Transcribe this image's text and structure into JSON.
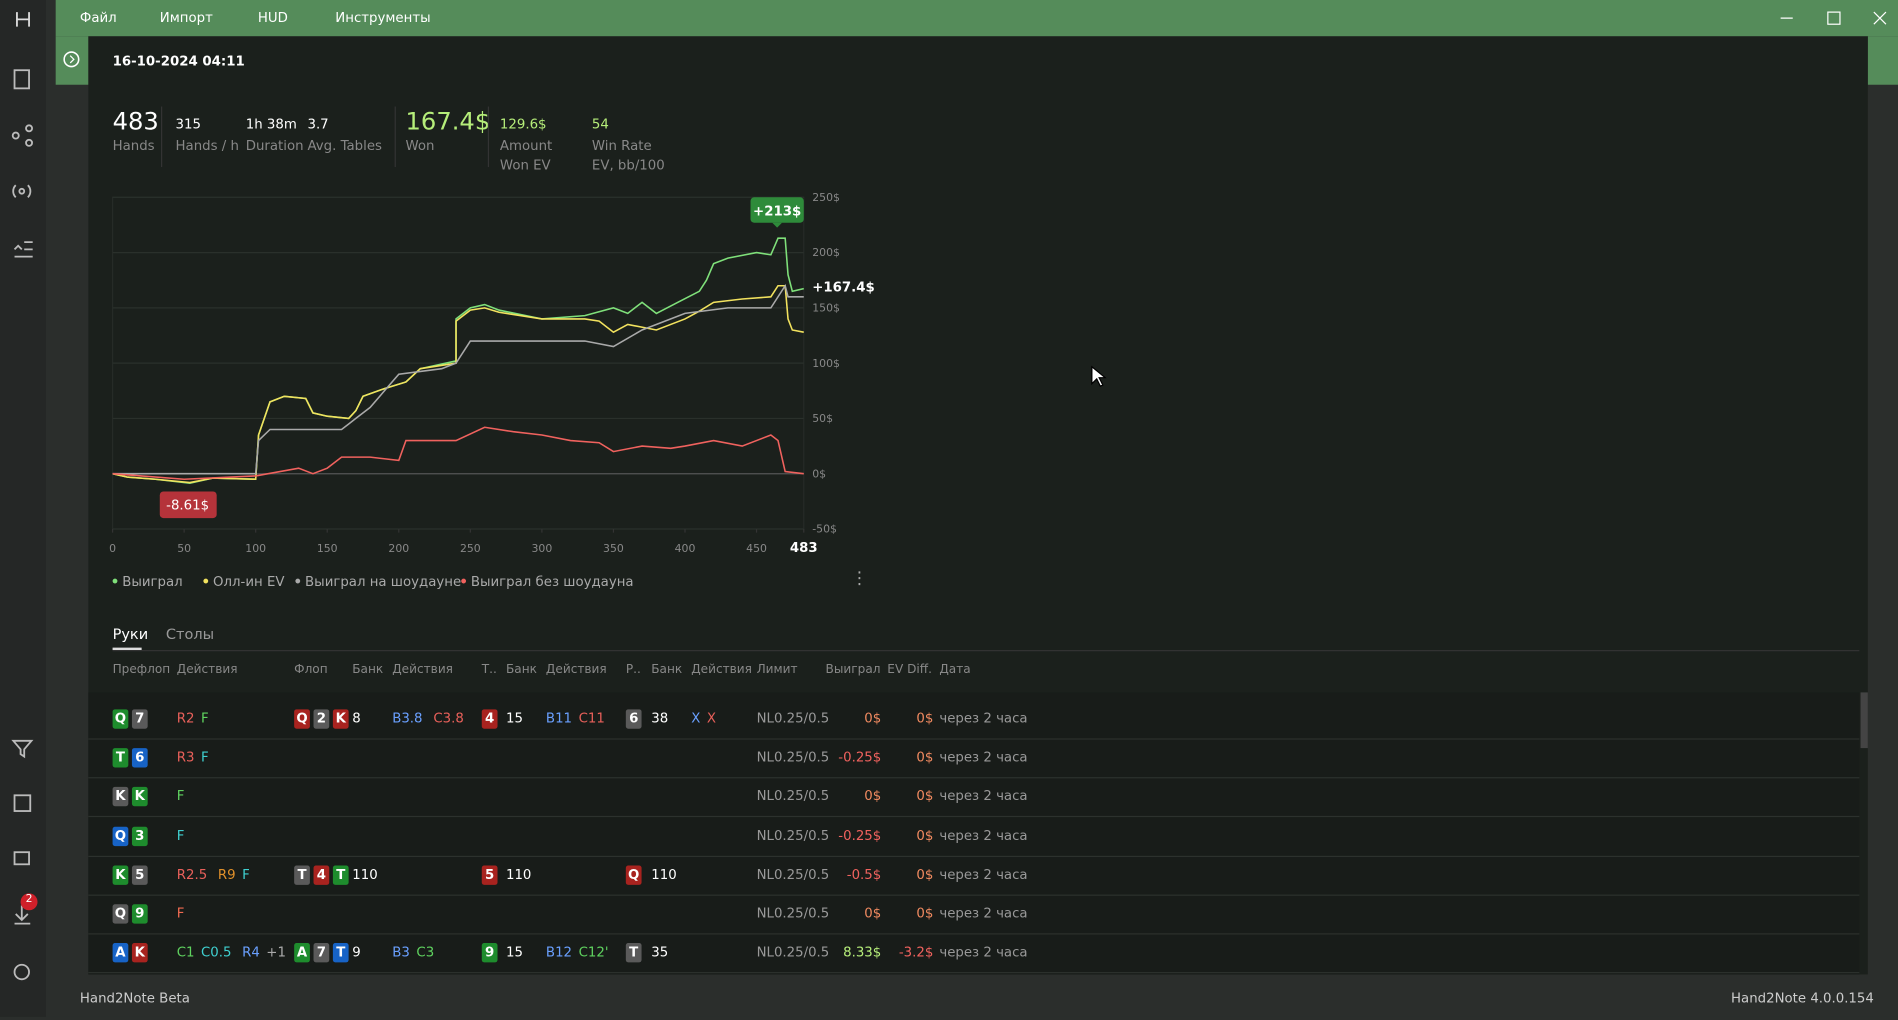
{
  "menu": [
    "Файл",
    "Импорт",
    "HUD",
    "Инструменты"
  ],
  "session_date": "16-10-2024 04:11",
  "stats": [
    {
      "value": "483",
      "label": "Hands"
    },
    {
      "value": "315",
      "label": "Hands / h"
    },
    {
      "value": "1h 38m",
      "label": "Duration"
    },
    {
      "value": "3.7",
      "label": "Avg. Tables"
    },
    {
      "value": "167.4$",
      "label": "Won"
    },
    {
      "value": "129.6$",
      "label": "Amount Won EV"
    },
    {
      "value": "54",
      "label": "Win Rate EV, bb/100"
    }
  ],
  "chart_data": {
    "type": "line",
    "xlim": [
      0,
      483
    ],
    "xticks": [
      0,
      50,
      100,
      150,
      200,
      250,
      300,
      350,
      400,
      450,
      483
    ],
    "ylim": [
      -50,
      250
    ],
    "yticks": [
      {
        "value": -50,
        "label": "-50$"
      },
      {
        "value": 0,
        "label": "0$"
      },
      {
        "value": 50,
        "label": "50$"
      },
      {
        "value": 100,
        "label": "100$"
      },
      {
        "value": 150,
        "label": "150$"
      },
      {
        "value": 200,
        "label": "200$"
      },
      {
        "value": 250,
        "label": "250$"
      }
    ],
    "grid": true,
    "annotations": [
      "+213$",
      "-8.61$",
      "+167.4$"
    ],
    "series": [
      {
        "name": "Выиграл",
        "color": "#7fe07a",
        "x": [
          0,
          10,
          30,
          54,
          70,
          100,
          102,
          110,
          120,
          135,
          140,
          150,
          165,
          170,
          175,
          190,
          205,
          215,
          240,
          240,
          250,
          260,
          270,
          300,
          330,
          350,
          360,
          370,
          380,
          395,
          410,
          415,
          420,
          430,
          450,
          460,
          465,
          470,
          472,
          475,
          483
        ],
        "values": [
          0,
          -3,
          -5,
          -8.61,
          -4,
          -5,
          35,
          65,
          70,
          68,
          55,
          52,
          50,
          57,
          70,
          77,
          83,
          95,
          102,
          140,
          150,
          153,
          148,
          140,
          143,
          150,
          145,
          155,
          145,
          155,
          165,
          175,
          190,
          195,
          200,
          198,
          213,
          213,
          180,
          165,
          167.4
        ]
      },
      {
        "name": "Олл-ин EV",
        "color": "#f2e25e",
        "x": [
          0,
          10,
          30,
          54,
          70,
          100,
          102,
          110,
          120,
          135,
          140,
          150,
          165,
          170,
          175,
          190,
          205,
          215,
          240,
          240,
          250,
          260,
          270,
          300,
          330,
          340,
          350,
          360,
          380,
          400,
          410,
          420,
          440,
          460,
          465,
          470,
          472,
          475,
          483
        ],
        "values": [
          0,
          -3,
          -5,
          -8,
          -4,
          -5,
          35,
          65,
          70,
          68,
          55,
          52,
          50,
          57,
          70,
          77,
          83,
          95,
          100,
          138,
          148,
          150,
          146,
          140,
          140,
          138,
          128,
          135,
          130,
          140,
          147,
          155,
          158,
          160,
          170,
          170,
          140,
          130,
          128
        ]
      },
      {
        "name": "Выиграл на шоудауне",
        "color": "#a9a9a9",
        "x": [
          0,
          100,
          102,
          110,
          160,
          165,
          170,
          180,
          190,
          200,
          230,
          240,
          250,
          330,
          350,
          370,
          400,
          430,
          460,
          470,
          472,
          483
        ],
        "values": [
          0,
          0,
          30,
          40,
          40,
          45,
          50,
          60,
          75,
          90,
          95,
          100,
          120,
          120,
          115,
          130,
          145,
          150,
          150,
          170,
          160,
          160
        ]
      },
      {
        "name": "Выиграл без шоудауна",
        "color": "#f0625e",
        "x": [
          0,
          50,
          100,
          130,
          140,
          150,
          160,
          180,
          200,
          205,
          240,
          260,
          280,
          300,
          320,
          340,
          350,
          370,
          390,
          400,
          420,
          440,
          460,
          465,
          470,
          483
        ],
        "values": [
          0,
          -5,
          -2,
          5,
          0,
          5,
          15,
          15,
          12,
          30,
          30,
          42,
          38,
          35,
          30,
          28,
          20,
          25,
          23,
          25,
          30,
          25,
          35,
          30,
          2,
          0
        ]
      }
    ]
  },
  "tabs": [
    "Руки",
    "Столы"
  ],
  "columns": [
    "Префлоп",
    "Действия",
    "Флоп",
    "Банк",
    "Действия",
    "Т..",
    "Банк",
    "Действия",
    "Р..",
    "Банк",
    "Действия",
    "Лимит",
    "Выиграл",
    "EV Diff.",
    "Дата"
  ],
  "rows": [
    {
      "preflop": [
        {
          "rank": "Q",
          "color": "#1e8c2d"
        },
        {
          "rank": "7",
          "color": "#5a5a5a"
        }
      ],
      "pre_actions": [
        {
          "text": "R2",
          "color": "#e8605a"
        },
        {
          "text": "F",
          "color": "#5fd35f"
        }
      ],
      "flop": [
        {
          "rank": "Q",
          "color": "#a8231f"
        },
        {
          "rank": "2",
          "color": "#5a5a5a"
        },
        {
          "rank": "K",
          "color": "#a8231f"
        }
      ],
      "flop_pot": 8,
      "flop_actions": [
        {
          "text": "B3.8",
          "color": "#6aa0ff"
        },
        {
          "text": "C3.8",
          "color": "#e8605a"
        }
      ],
      "turn": [
        {
          "rank": "4",
          "color": "#a8231f"
        }
      ],
      "turn_pot": 15,
      "turn_actions": [
        {
          "text": "B11",
          "color": "#6aa0ff"
        },
        {
          "text": "C11",
          "color": "#e8605a"
        }
      ],
      "river": [
        {
          "rank": "6",
          "color": "#5a5a5a"
        }
      ],
      "river_pot": 38,
      "river_actions": [
        {
          "text": "X",
          "color": "#6aa0ff"
        },
        {
          "text": "X",
          "color": "#e8605a"
        }
      ],
      "limit": "NL0.25/0.5",
      "won": {
        "text": "0$",
        "color": "#f08a60"
      },
      "ev_diff": {
        "text": "0$",
        "color": "#f08a60"
      },
      "date": "через 2 часа"
    },
    {
      "preflop": [
        {
          "rank": "T",
          "color": "#1e8c2d"
        },
        {
          "rank": "6",
          "color": "#1763c6"
        }
      ],
      "pre_actions": [
        {
          "text": "R3",
          "color": "#e8605a"
        },
        {
          "text": "F",
          "color": "#3fd0d0"
        }
      ],
      "limit": "NL0.25/0.5",
      "won": {
        "text": "-0.25$",
        "color": "#f0625e"
      },
      "ev_diff": {
        "text": "0$",
        "color": "#f08a60"
      },
      "date": "через 2 часа"
    },
    {
      "preflop": [
        {
          "rank": "K",
          "color": "#5a5a5a"
        },
        {
          "rank": "K",
          "color": "#1e8c2d"
        }
      ],
      "pre_actions": [
        {
          "text": "F",
          "color": "#5fd35f"
        }
      ],
      "limit": "NL0.25/0.5",
      "won": {
        "text": "0$",
        "color": "#f08a60"
      },
      "ev_diff": {
        "text": "0$",
        "color": "#f08a60"
      },
      "date": "через 2 часа"
    },
    {
      "preflop": [
        {
          "rank": "Q",
          "color": "#1763c6"
        },
        {
          "rank": "3",
          "color": "#1e8c2d"
        }
      ],
      "pre_actions": [
        {
          "text": "F",
          "color": "#3fd0d0"
        }
      ],
      "limit": "NL0.25/0.5",
      "won": {
        "text": "-0.25$",
        "color": "#f0625e"
      },
      "ev_diff": {
        "text": "0$",
        "color": "#f08a60"
      },
      "date": "через 2 часа"
    },
    {
      "preflop": [
        {
          "rank": "K",
          "color": "#1e8c2d"
        },
        {
          "rank": "5",
          "color": "#5a5a5a"
        }
      ],
      "pre_actions": [
        {
          "text": "R2.5",
          "color": "#e8605a"
        },
        {
          "text": "R9",
          "color": "#e0902a"
        },
        {
          "text": "F",
          "color": "#3fd0d0"
        }
      ],
      "flop": [
        {
          "rank": "T",
          "color": "#5a5a5a"
        },
        {
          "rank": "4",
          "color": "#a8231f"
        },
        {
          "rank": "T",
          "color": "#1e8c2d"
        }
      ],
      "flop_pot": 110,
      "turn": [
        {
          "rank": "5",
          "color": "#a8231f"
        }
      ],
      "turn_pot": 110,
      "river": [
        {
          "rank": "Q",
          "color": "#a8231f"
        }
      ],
      "river_pot": 110,
      "limit": "NL0.25/0.5",
      "won": {
        "text": "-0.5$",
        "color": "#f0625e"
      },
      "ev_diff": {
        "text": "0$",
        "color": "#f08a60"
      },
      "date": "через 2 часа"
    },
    {
      "preflop": [
        {
          "rank": "Q",
          "color": "#5a5a5a"
        },
        {
          "rank": "9",
          "color": "#1e8c2d"
        }
      ],
      "pre_actions": [
        {
          "text": "F",
          "color": "#f06a50"
        }
      ],
      "limit": "NL0.25/0.5",
      "won": {
        "text": "0$",
        "color": "#f08a60"
      },
      "ev_diff": {
        "text": "0$",
        "color": "#f08a60"
      },
      "date": "через 2 часа"
    },
    {
      "preflop": [
        {
          "rank": "A",
          "color": "#1763c6"
        },
        {
          "rank": "K",
          "color": "#a8231f"
        }
      ],
      "pre_actions": [
        {
          "text": "C1",
          "color": "#5fd35f"
        },
        {
          "text": "C0.5",
          "color": "#3fd0d0"
        },
        {
          "text": "R4",
          "color": "#6aa0ff"
        },
        {
          "text": "+1",
          "color": "#aaaaaa"
        }
      ],
      "flop": [
        {
          "rank": "A",
          "color": "#1e8c2d"
        },
        {
          "rank": "7",
          "color": "#5a5a5a"
        },
        {
          "rank": "T",
          "color": "#1763c6"
        }
      ],
      "flop_pot": 9,
      "flop_actions": [
        {
          "text": "B3",
          "color": "#6aa0ff"
        },
        {
          "text": "C3",
          "color": "#5fd35f"
        }
      ],
      "turn": [
        {
          "rank": "9",
          "color": "#1e8c2d"
        }
      ],
      "turn_pot": 15,
      "turn_actions": [
        {
          "text": "B12",
          "color": "#6aa0ff"
        },
        {
          "text": "C12'",
          "color": "#5fd35f"
        }
      ],
      "river": [
        {
          "rank": "T",
          "color": "#5a5a5a"
        }
      ],
      "river_pot": 35,
      "limit": "NL0.25/0.5",
      "won": {
        "text": "8.33$",
        "color": "#b6ee7a"
      },
      "ev_diff": {
        "text": "-3.2$",
        "color": "#f0625e"
      },
      "date": "через 2 часа"
    }
  ],
  "notification_count": "2",
  "footer": {
    "left": "Hand2Note Beta",
    "right": "Hand2Note 4.0.0.154"
  }
}
